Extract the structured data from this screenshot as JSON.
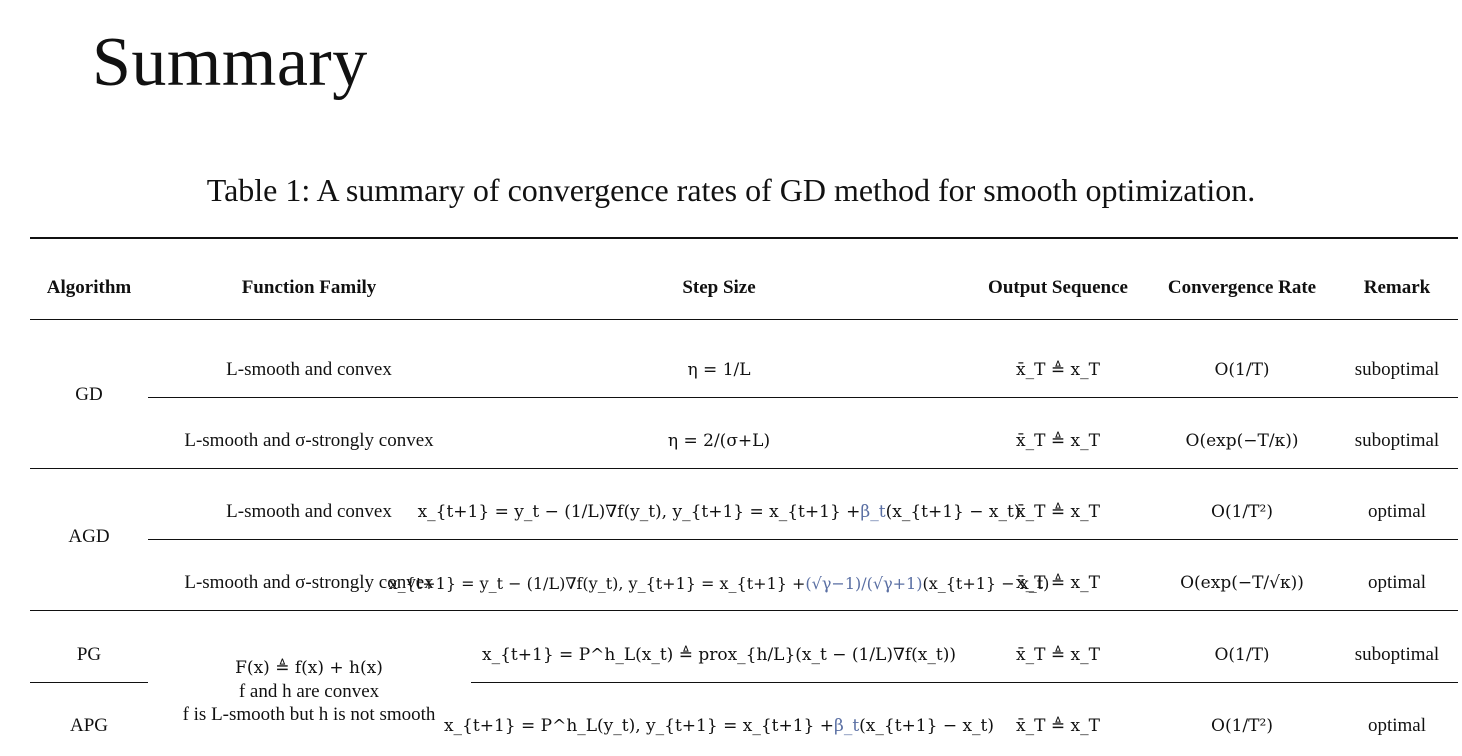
{
  "page": {
    "title": "Summary",
    "caption": "Table 1: A summary of convergence rates of GD method for smooth optimization."
  },
  "table": {
    "headers": [
      "Algorithm",
      "Function Family",
      "Step Size",
      "Output Sequence",
      "Convergence Rate",
      "Remark"
    ],
    "algorithms": [
      "GD",
      "AGD",
      "PG",
      "APG"
    ],
    "families": {
      "convex": "L-smooth and convex",
      "strongly_convex": "L-smooth and σ-strongly convex",
      "composite_line1": "F(x) ≜ f(x) + h(x)",
      "composite_line2": "f and h are convex",
      "composite_line3": "f is L-smooth but h is not smooth"
    },
    "step_sizes": {
      "gd_convex": "η = 1/L",
      "gd_strong": "η = 2/(σ+L)",
      "agd_convex_main": "x_{t+1} = y_t − (1/L)∇f(y_t),  y_{t+1} = x_{t+1} + ",
      "agd_convex_beta": "β_t",
      "agd_convex_tail": "(x_{t+1} − x_t)",
      "agd_strong_main": "x_{t+1} = y_t − (1/L)∇f(y_t),  y_{t+1} = x_{t+1} + ",
      "agd_strong_frac": "(√γ−1)/(√γ+1)",
      "agd_strong_tail": "(x_{t+1} − x_t)",
      "pg": "x_{t+1} = P^h_L(x_t) ≜ prox_{h/L}(x_t − (1/L)∇f(x_t))",
      "apg_main": "x_{t+1} = P^h_L(y_t),  y_{t+1} = x_{t+1} + ",
      "apg_beta": "β_t",
      "apg_tail": "(x_{t+1} − x_t)"
    },
    "output_sequence": "x̄_T ≜ x_T",
    "rates": {
      "gd_convex": "O(1/T)",
      "gd_strong": "O(exp(−T/κ))",
      "agd_convex": "O(1/T²)",
      "agd_strong": "O(exp(−T/√κ))",
      "pg": "O(1/T)",
      "apg": "O(1/T²)"
    },
    "remarks": {
      "suboptimal": "suboptimal",
      "optimal": "optimal"
    },
    "accent_color": "#5a6fa3"
  }
}
